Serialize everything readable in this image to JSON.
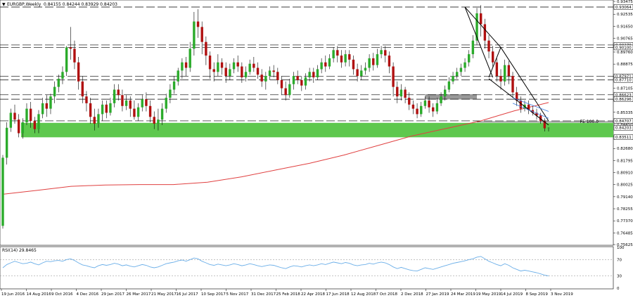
{
  "header": {
    "symbol": "EURGBP,Weekly",
    "ohlc": "0.84155 0.84244 0.83929 0.84203"
  },
  "rsi_label": "RSI(14) 29.8465",
  "fe_label": "FE 100.0",
  "colors": {
    "bull_candle": "#2bab2b",
    "bear_candle": "#b01010",
    "wick": "#000000",
    "moving_average": "#e04040",
    "rsi_line": "#6aaee8",
    "support_zone": "#5ec84e",
    "resistance_zone": "#999999",
    "channel": "#3f7fe0"
  },
  "chart_data": [
    {
      "type": "candlestick",
      "title": "",
      "ylim": [
        0.75625,
        0.93475
      ],
      "y_ticks": [
        "0.93475",
        "0.92535",
        "0.91650",
        "0.90765",
        "0.89760",
        "0.88875",
        "0.87990",
        "0.87105",
        "0.86220",
        "0.85335",
        "0.84450",
        "0.83565",
        "0.82680",
        "0.81795",
        "0.80910",
        "0.80025",
        "0.79140",
        "0.78255",
        "0.77370",
        "0.76485",
        "0.75625"
      ],
      "x_ticks": [
        "19 Jun 2016",
        "14 Aug 2016",
        "9 Oct 2016",
        "4 Dec 2016",
        "29 Jan 2017",
        "26 Mar 2017",
        "21 May 2017",
        "16 Jul 2017",
        "10 Sep 2017",
        "5 Nov 2017",
        "31 Dec 2017",
        "25 Feb 2018",
        "22 Apr 2018",
        "17 Jun 2018",
        "12 Aug 2018",
        "7 Oct 2018",
        "2 Dec 2018",
        "27 Jan 2019",
        "24 Mar 2019",
        "19 May 2019",
        "14 Jul 2019",
        "8 Sep 2019",
        "3 Nov 2019"
      ],
      "x_start": "2016-06-19",
      "price_levels": [
        {
          "value": 0.93064,
          "label": "0.93064"
        },
        {
          "value": 0.90279,
          "label": "0.90279"
        },
        {
          "value": 0.901,
          "label": "0.90100"
        },
        {
          "value": 0.87971,
          "label": "0.87971"
        },
        {
          "value": 0.8771,
          "label": "0.87710"
        },
        {
          "value": 0.86623,
          "label": "0.86623"
        },
        {
          "value": 0.86296,
          "label": "0.86296"
        },
        {
          "value": 0.84707,
          "label": "0.84707"
        },
        {
          "value": 0.84203,
          "label": "0.84203"
        },
        {
          "value": 0.83511,
          "label": "0.83511"
        }
      ],
      "support_zone": [
        0.835,
        0.8456
      ],
      "resistance_zone": [
        0.8628,
        0.8666
      ],
      "moving_average": [
        0.7932,
        0.796,
        0.799,
        0.8,
        0.8003,
        0.8003,
        0.802,
        0.806,
        0.811,
        0.816,
        0.822,
        0.829,
        0.836,
        0.8415,
        0.847,
        0.8545,
        0.8605
      ],
      "fib_projection_level": 0.8462,
      "candles": [
        [
          0.77,
          0.82,
          0.768,
          0.822
        ],
        [
          0.82,
          0.842,
          0.815,
          0.846
        ],
        [
          0.842,
          0.853,
          0.839,
          0.856
        ],
        [
          0.853,
          0.848,
          0.845,
          0.859
        ],
        [
          0.848,
          0.838,
          0.835,
          0.852
        ],
        [
          0.838,
          0.846,
          0.834,
          0.849
        ],
        [
          0.846,
          0.856,
          0.844,
          0.86
        ],
        [
          0.856,
          0.847,
          0.842,
          0.861
        ],
        [
          0.847,
          0.841,
          0.838,
          0.85
        ],
        [
          0.841,
          0.852,
          0.838,
          0.855
        ],
        [
          0.852,
          0.86,
          0.849,
          0.864
        ],
        [
          0.86,
          0.856,
          0.85,
          0.866
        ],
        [
          0.856,
          0.865,
          0.852,
          0.867
        ],
        [
          0.865,
          0.872,
          0.86,
          0.876
        ],
        [
          0.872,
          0.878,
          0.868,
          0.881
        ],
        [
          0.878,
          0.883,
          0.874,
          0.887
        ],
        [
          0.883,
          0.901,
          0.88,
          0.902
        ],
        [
          0.901,
          0.9,
          0.892,
          0.916
        ],
        [
          0.9,
          0.89,
          0.885,
          0.906
        ],
        [
          0.89,
          0.876,
          0.87,
          0.894
        ],
        [
          0.876,
          0.865,
          0.86,
          0.88
        ],
        [
          0.865,
          0.86,
          0.854,
          0.869
        ],
        [
          0.86,
          0.85,
          0.845,
          0.864
        ],
        [
          0.85,
          0.845,
          0.84,
          0.856
        ],
        [
          0.845,
          0.852,
          0.842,
          0.856
        ],
        [
          0.852,
          0.859,
          0.847,
          0.862
        ],
        [
          0.859,
          0.853,
          0.849,
          0.862
        ],
        [
          0.853,
          0.86,
          0.851,
          0.864
        ],
        [
          0.86,
          0.87,
          0.857,
          0.874
        ],
        [
          0.87,
          0.866,
          0.862,
          0.874
        ],
        [
          0.866,
          0.858,
          0.854,
          0.87
        ],
        [
          0.858,
          0.862,
          0.855,
          0.866
        ],
        [
          0.862,
          0.856,
          0.85,
          0.865
        ],
        [
          0.856,
          0.85,
          0.848,
          0.862
        ],
        [
          0.85,
          0.857,
          0.847,
          0.86
        ],
        [
          0.857,
          0.863,
          0.854,
          0.866
        ],
        [
          0.863,
          0.858,
          0.854,
          0.868
        ],
        [
          0.858,
          0.85,
          0.846,
          0.862
        ],
        [
          0.85,
          0.845,
          0.841,
          0.854
        ],
        [
          0.845,
          0.848,
          0.84,
          0.856
        ],
        [
          0.848,
          0.856,
          0.844,
          0.86
        ],
        [
          0.856,
          0.864,
          0.853,
          0.867
        ],
        [
          0.864,
          0.87,
          0.86,
          0.874
        ],
        [
          0.87,
          0.876,
          0.867,
          0.88
        ],
        [
          0.876,
          0.884,
          0.873,
          0.886
        ],
        [
          0.884,
          0.89,
          0.878,
          0.893
        ],
        [
          0.89,
          0.886,
          0.88,
          0.894
        ],
        [
          0.886,
          0.9,
          0.883,
          0.905
        ],
        [
          0.9,
          0.92,
          0.895,
          0.927
        ],
        [
          0.92,
          0.916,
          0.908,
          0.929
        ],
        [
          0.916,
          0.905,
          0.896,
          0.92
        ],
        [
          0.905,
          0.895,
          0.888,
          0.909
        ],
        [
          0.895,
          0.885,
          0.878,
          0.898
        ],
        [
          0.885,
          0.883,
          0.876,
          0.89
        ],
        [
          0.883,
          0.89,
          0.88,
          0.896
        ],
        [
          0.89,
          0.886,
          0.881,
          0.893
        ],
        [
          0.886,
          0.88,
          0.875,
          0.89
        ],
        [
          0.88,
          0.885,
          0.877,
          0.889
        ],
        [
          0.885,
          0.89,
          0.882,
          0.893
        ],
        [
          0.89,
          0.887,
          0.883,
          0.895
        ],
        [
          0.887,
          0.879,
          0.875,
          0.89
        ],
        [
          0.879,
          0.883,
          0.876,
          0.887
        ],
        [
          0.883,
          0.889,
          0.881,
          0.892
        ],
        [
          0.889,
          0.886,
          0.883,
          0.894
        ],
        [
          0.886,
          0.881,
          0.878,
          0.89
        ],
        [
          0.881,
          0.876,
          0.872,
          0.885
        ],
        [
          0.876,
          0.88,
          0.87,
          0.883
        ],
        [
          0.88,
          0.884,
          0.877,
          0.887
        ],
        [
          0.884,
          0.883,
          0.879,
          0.888
        ],
        [
          0.883,
          0.877,
          0.874,
          0.886
        ],
        [
          0.877,
          0.871,
          0.866,
          0.88
        ],
        [
          0.871,
          0.866,
          0.862,
          0.876
        ],
        [
          0.866,
          0.874,
          0.864,
          0.878
        ],
        [
          0.874,
          0.88,
          0.87,
          0.883
        ],
        [
          0.88,
          0.877,
          0.874,
          0.884
        ],
        [
          0.877,
          0.873,
          0.869,
          0.88
        ],
        [
          0.873,
          0.879,
          0.87,
          0.882
        ],
        [
          0.879,
          0.883,
          0.876,
          0.886
        ],
        [
          0.883,
          0.879,
          0.875,
          0.886
        ],
        [
          0.879,
          0.885,
          0.877,
          0.888
        ],
        [
          0.885,
          0.89,
          0.882,
          0.893
        ],
        [
          0.89,
          0.887,
          0.883,
          0.895
        ],
        [
          0.887,
          0.893,
          0.885,
          0.896
        ],
        [
          0.893,
          0.899,
          0.89,
          0.901
        ],
        [
          0.899,
          0.895,
          0.89,
          0.902
        ],
        [
          0.895,
          0.89,
          0.886,
          0.899
        ],
        [
          0.89,
          0.896,
          0.887,
          0.899
        ],
        [
          0.896,
          0.892,
          0.887,
          0.899
        ],
        [
          0.892,
          0.885,
          0.881,
          0.895
        ],
        [
          0.885,
          0.88,
          0.876,
          0.889
        ],
        [
          0.88,
          0.884,
          0.877,
          0.888
        ],
        [
          0.884,
          0.886,
          0.881,
          0.89
        ],
        [
          0.886,
          0.893,
          0.883,
          0.896
        ],
        [
          0.893,
          0.888,
          0.884,
          0.897
        ],
        [
          0.888,
          0.896,
          0.886,
          0.9
        ],
        [
          0.896,
          0.899,
          0.893,
          0.902
        ],
        [
          0.899,
          0.895,
          0.89,
          0.902
        ],
        [
          0.895,
          0.887,
          0.882,
          0.898
        ],
        [
          0.887,
          0.872,
          0.865,
          0.89
        ],
        [
          0.872,
          0.865,
          0.86,
          0.876
        ],
        [
          0.865,
          0.87,
          0.862,
          0.874
        ],
        [
          0.87,
          0.864,
          0.86,
          0.872
        ],
        [
          0.864,
          0.859,
          0.855,
          0.868
        ],
        [
          0.859,
          0.856,
          0.852,
          0.862
        ],
        [
          0.856,
          0.852,
          0.849,
          0.86
        ],
        [
          0.852,
          0.858,
          0.85,
          0.861
        ],
        [
          0.858,
          0.862,
          0.856,
          0.865
        ],
        [
          0.862,
          0.857,
          0.853,
          0.865
        ],
        [
          0.857,
          0.854,
          0.85,
          0.86
        ],
        [
          0.854,
          0.86,
          0.852,
          0.864
        ],
        [
          0.86,
          0.865,
          0.858,
          0.868
        ],
        [
          0.865,
          0.87,
          0.862,
          0.873
        ],
        [
          0.87,
          0.876,
          0.868,
          0.879
        ],
        [
          0.876,
          0.88,
          0.874,
          0.883
        ],
        [
          0.88,
          0.883,
          0.878,
          0.886
        ],
        [
          0.883,
          0.886,
          0.88,
          0.889
        ],
        [
          0.886,
          0.89,
          0.883,
          0.893
        ],
        [
          0.89,
          0.896,
          0.887,
          0.899
        ],
        [
          0.896,
          0.906,
          0.893,
          0.91
        ],
        [
          0.906,
          0.926,
          0.903,
          0.93
        ],
        [
          0.926,
          0.918,
          0.909,
          0.932
        ],
        [
          0.918,
          0.906,
          0.9,
          0.922
        ],
        [
          0.906,
          0.898,
          0.893,
          0.91
        ],
        [
          0.898,
          0.89,
          0.886,
          0.902
        ],
        [
          0.89,
          0.88,
          0.876,
          0.893
        ],
        [
          0.88,
          0.876,
          0.87,
          0.885
        ],
        [
          0.876,
          0.888,
          0.873,
          0.892
        ],
        [
          0.888,
          0.88,
          0.874,
          0.891
        ],
        [
          0.88,
          0.868,
          0.864,
          0.883
        ],
        [
          0.868,
          0.862,
          0.858,
          0.872
        ],
        [
          0.862,
          0.856,
          0.853,
          0.865
        ],
        [
          0.856,
          0.859,
          0.854,
          0.862
        ],
        [
          0.859,
          0.855,
          0.852,
          0.862
        ],
        [
          0.855,
          0.853,
          0.851,
          0.858
        ],
        [
          0.853,
          0.851,
          0.848,
          0.856
        ],
        [
          0.851,
          0.847,
          0.845,
          0.853
        ],
        [
          0.847,
          0.8416,
          0.8393,
          0.849
        ],
        [
          0.8416,
          0.842,
          0.8393,
          0.8424
        ]
      ]
    },
    {
      "type": "line",
      "title": "RSI(14) 29.8465",
      "ylim": [
        0,
        100
      ],
      "y_ticks": [
        "100",
        "70",
        "30",
        "0"
      ],
      "values": [
        50,
        58,
        62,
        66,
        63,
        60,
        61,
        64,
        60,
        57,
        62,
        66,
        65,
        67,
        68,
        66,
        70,
        72,
        68,
        62,
        57,
        55,
        52,
        50,
        55,
        58,
        56,
        58,
        61,
        59,
        55,
        57,
        54,
        52,
        55,
        58,
        56,
        52,
        50,
        52,
        56,
        60,
        62,
        64,
        67,
        69,
        66,
        70,
        74,
        72,
        66,
        62,
        58,
        56,
        59,
        57,
        55,
        57,
        60,
        58,
        55,
        57,
        60,
        58,
        55,
        53,
        55,
        57,
        56,
        53,
        50,
        48,
        52,
        55,
        54,
        52,
        55,
        57,
        55,
        57,
        60,
        58,
        61,
        64,
        62,
        60,
        63,
        61,
        57,
        55,
        57,
        58,
        61,
        59,
        62,
        64,
        62,
        58,
        52,
        48,
        51,
        48,
        45,
        43,
        42,
        46,
        50,
        48,
        46,
        49,
        52,
        55,
        58,
        61,
        63,
        65,
        67,
        70,
        72,
        76,
        78,
        72,
        66,
        62,
        58,
        55,
        60,
        56,
        50,
        46,
        42,
        44,
        42,
        40,
        38,
        35,
        32,
        30
      ]
    }
  ]
}
